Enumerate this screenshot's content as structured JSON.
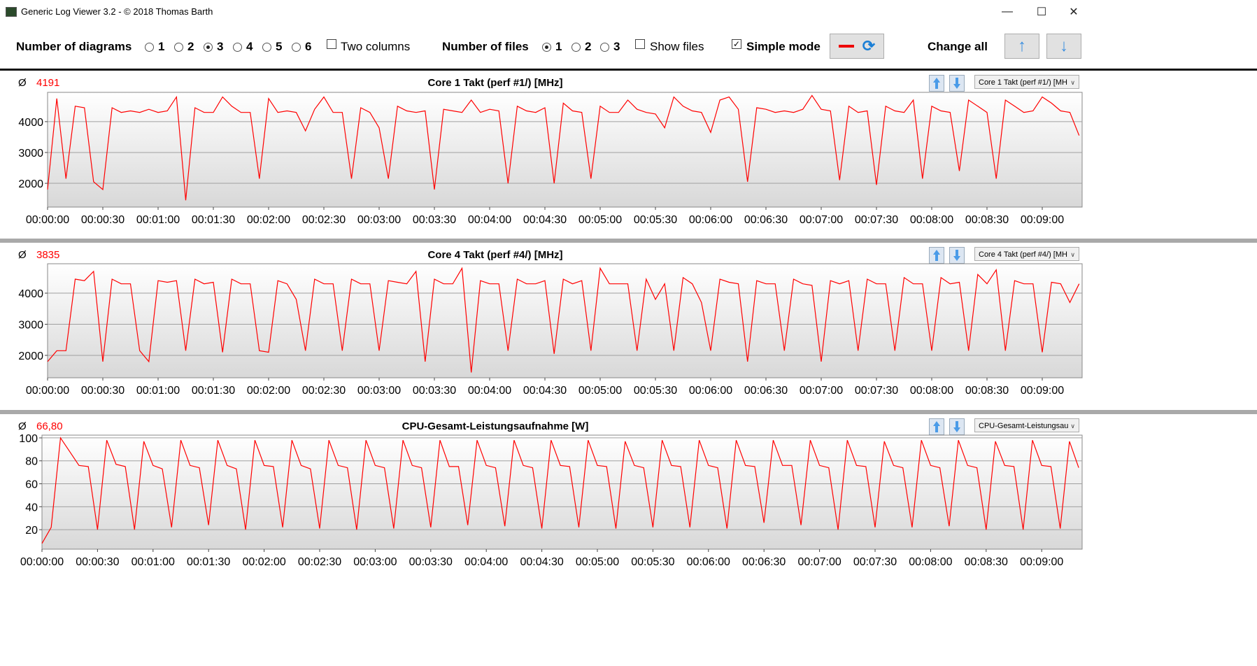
{
  "window": {
    "title": "Generic Log Viewer 3.2 - © 2018 Thomas Barth",
    "minimize": "—",
    "maximize": "☐",
    "close": "✕"
  },
  "toolbar": {
    "diagrams_label": "Number of diagrams",
    "diagram_options": [
      "1",
      "2",
      "3",
      "4",
      "5",
      "6"
    ],
    "diagrams_selected": "3",
    "two_columns_label": "Two columns",
    "two_columns_checked": false,
    "files_label": "Number of files",
    "file_options": [
      "1",
      "2",
      "3"
    ],
    "files_selected": "1",
    "show_files_label": "Show files",
    "show_files_checked": false,
    "simple_mode_label": "Simple mode",
    "simple_mode_checked": true,
    "change_all_label": "Change all"
  },
  "panels": [
    {
      "avg_symbol": "Ø",
      "avg_value": "4191",
      "title": "Core 1 Takt (perf #1/) [MHz]",
      "selector": "Core 1 Takt (perf #1/) [MH"
    },
    {
      "avg_symbol": "Ø",
      "avg_value": "3835",
      "title": "Core 4 Takt (perf #4/) [MHz]",
      "selector": "Core 4 Takt (perf #4/) [MH"
    },
    {
      "avg_symbol": "Ø",
      "avg_value": "66,80",
      "title": "CPU-Gesamt-Leistungsaufnahme [W]",
      "selector": "CPU-Gesamt-Leistungsau"
    }
  ],
  "colors": {
    "series": "#ff0000",
    "grid": "#a0a0a0"
  },
  "chart_data": [
    {
      "type": "line",
      "title": "Core 1 Takt (perf #1/) [MHz]",
      "x_unit": "seconds",
      "x_step": 5,
      "x_start": 0,
      "xlim": [
        0,
        562
      ],
      "ylim": [
        1230,
        4950
      ],
      "yticks": [
        2000,
        3000,
        4000
      ],
      "xtick_labels": [
        "00:00:00",
        "00:00:30",
        "00:01:00",
        "00:01:30",
        "00:02:00",
        "00:02:30",
        "00:03:00",
        "00:03:30",
        "00:04:00",
        "00:04:30",
        "00:05:00",
        "00:05:30",
        "00:06:00",
        "00:06:30",
        "00:07:00",
        "00:07:30",
        "00:08:00",
        "00:08:30",
        "00:09:00"
      ],
      "values": [
        1800,
        4750,
        2150,
        4500,
        4450,
        2050,
        1800,
        4450,
        4300,
        4350,
        4300,
        4400,
        4300,
        4350,
        4800,
        1450,
        4450,
        4300,
        4300,
        4800,
        4500,
        4300,
        4300,
        2150,
        4750,
        4300,
        4350,
        4300,
        3700,
        4400,
        4800,
        4300,
        4300,
        2150,
        4450,
        4300,
        3800,
        2150,
        4500,
        4350,
        4300,
        4350,
        1800,
        4400,
        4350,
        4300,
        4700,
        4300,
        4400,
        4350,
        2000,
        4500,
        4350,
        4300,
        4450,
        2000,
        4600,
        4350,
        4300,
        2150,
        4500,
        4300,
        4300,
        4700,
        4400,
        4300,
        4250,
        3800,
        4800,
        4500,
        4350,
        4300,
        3650,
        4700,
        4800,
        4400,
        2050,
        4450,
        4400,
        4300,
        4350,
        4300,
        4400,
        4850,
        4400,
        4350,
        2100,
        4500,
        4300,
        4350,
        1950,
        4500,
        4350,
        4300,
        4700,
        2150,
        4500,
        4350,
        4300,
        2400,
        4700,
        4500,
        4300,
        2150,
        4700,
        4500,
        4300,
        4350,
        4800,
        4600,
        4350,
        4300,
        3550
      ]
    },
    {
      "type": "line",
      "title": "Core 4 Takt (perf #4/) [MHz]",
      "x_unit": "seconds",
      "x_step": 5,
      "x_start": 0,
      "xlim": [
        0,
        562
      ],
      "ylim": [
        1280,
        4945
      ],
      "yticks": [
        2000,
        3000,
        4000
      ],
      "xtick_labels": [
        "00:00:00",
        "00:00:30",
        "00:01:00",
        "00:01:30",
        "00:02:00",
        "00:02:30",
        "00:03:00",
        "00:03:30",
        "00:04:00",
        "00:04:30",
        "00:05:00",
        "00:05:30",
        "00:06:00",
        "00:06:30",
        "00:07:00",
        "00:07:30",
        "00:08:00",
        "00:08:30",
        "00:09:00"
      ],
      "values": [
        1800,
        2150,
        2150,
        4450,
        4400,
        4700,
        1800,
        4450,
        4300,
        4300,
        2150,
        1800,
        4400,
        4350,
        4400,
        2150,
        4450,
        4300,
        4350,
        2100,
        4450,
        4300,
        4300,
        2150,
        2100,
        4400,
        4300,
        3800,
        2150,
        4450,
        4300,
        4300,
        2150,
        4450,
        4300,
        4300,
        2150,
        4400,
        4350,
        4300,
        4700,
        1800,
        4450,
        4300,
        4300,
        4800,
        1450,
        4400,
        4300,
        4300,
        2150,
        4450,
        4300,
        4300,
        4400,
        2050,
        4450,
        4300,
        4400,
        2150,
        4800,
        4300,
        4300,
        4300,
        2150,
        4450,
        3800,
        4300,
        2150,
        4500,
        4300,
        3700,
        2150,
        4450,
        4350,
        4300,
        1800,
        4400,
        4300,
        4300,
        2150,
        4450,
        4300,
        4250,
        1800,
        4400,
        4300,
        4400,
        2150,
        4450,
        4300,
        4300,
        2150,
        4500,
        4300,
        4300,
        2150,
        4500,
        4300,
        4350,
        2150,
        4600,
        4300,
        4750,
        2150,
        4400,
        4300,
        4300,
        2100,
        4350,
        4300,
        3700,
        4300
      ]
    },
    {
      "type": "line",
      "title": "CPU-Gesamt-Leistungsaufnahme [W]",
      "x_unit": "seconds",
      "x_step": 5,
      "x_start": 0,
      "xlim": [
        0,
        562
      ],
      "ylim": [
        3,
        102.4
      ],
      "yticks": [
        20,
        40,
        60,
        80,
        100
      ],
      "xtick_labels": [
        "00:00:00",
        "00:00:30",
        "00:01:00",
        "00:01:30",
        "00:02:00",
        "00:02:30",
        "00:03:00",
        "00:03:30",
        "00:04:00",
        "00:04:30",
        "00:05:00",
        "00:05:30",
        "00:06:00",
        "00:06:30",
        "00:07:00",
        "00:07:30",
        "00:08:00",
        "00:08:30",
        "00:09:00"
      ],
      "values": [
        8,
        22,
        100,
        88,
        76,
        75,
        20,
        98,
        77,
        75,
        20,
        97,
        76,
        73,
        22,
        98,
        76,
        74,
        24,
        98,
        76,
        73,
        20,
        98,
        76,
        75,
        22,
        98,
        76,
        73,
        21,
        98,
        76,
        74,
        20,
        98,
        76,
        74,
        21,
        98,
        76,
        74,
        22,
        98,
        75,
        75,
        24,
        98,
        76,
        74,
        23,
        98,
        76,
        74,
        21,
        98,
        76,
        75,
        22,
        98,
        76,
        75,
        21,
        97,
        76,
        74,
        22,
        98,
        76,
        75,
        22,
        98,
        76,
        74,
        21,
        98,
        76,
        75,
        26,
        98,
        76,
        76,
        24,
        98,
        76,
        74,
        20,
        98,
        76,
        75,
        22,
        97,
        76,
        74,
        22,
        98,
        76,
        74,
        23,
        98,
        76,
        74,
        20,
        97,
        76,
        75,
        20,
        98,
        76,
        75,
        21,
        97,
        74
      ]
    }
  ]
}
